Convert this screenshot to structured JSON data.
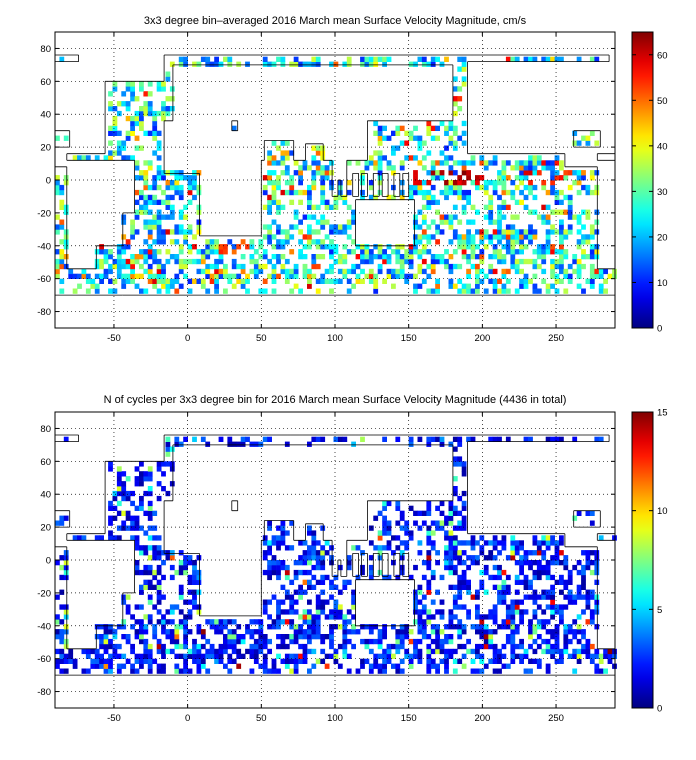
{
  "figure": {
    "background": "#ffffff"
  },
  "chart_data": [
    {
      "type": "heatmap",
      "title": "3x3 degree bin–averaged 2016 March mean Surface Velocity Magnitude, cm/s",
      "xlabel": "",
      "ylabel": "",
      "xlim": [
        -90,
        290
      ],
      "ylim": [
        -90,
        90
      ],
      "x_ticks": [
        -50,
        0,
        50,
        100,
        150,
        200,
        250
      ],
      "y_ticks": [
        80,
        60,
        40,
        20,
        0,
        -20,
        -40,
        -60,
        -80
      ],
      "grid": true,
      "grid_style": "dotted",
      "bin_size_deg": 3,
      "colormap": "jet",
      "colorbar": {
        "min": 0,
        "max": 65,
        "ticks": [
          0,
          10,
          20,
          30,
          40,
          50,
          60
        ]
      },
      "mean_bin_value_estimate": 22,
      "high_value_regions_estimate": [
        {
          "lon_range": [
            150,
            200
          ],
          "lat_range": [
            -3,
            3
          ],
          "value": 65
        },
        {
          "lon_range": [
            230,
            260
          ],
          "lat_range": [
            -3,
            3
          ],
          "value": 60
        },
        {
          "lon_range": [
            20,
            40
          ],
          "lat_range": [
            -45,
            -35
          ],
          "value": 55
        },
        {
          "lon_range": [
            140,
            160
          ],
          "lat_range": [
            30,
            40
          ],
          "value": 55
        }
      ]
    },
    {
      "type": "heatmap",
      "title": "N of cycles per 3x3 degree bin for 2016 March mean Surface Velocity Magnitude (4436 in total)",
      "xlabel": "",
      "ylabel": "",
      "xlim": [
        -90,
        290
      ],
      "ylim": [
        -90,
        90
      ],
      "x_ticks": [
        -50,
        0,
        50,
        100,
        150,
        200,
        250
      ],
      "y_ticks": [
        80,
        60,
        40,
        20,
        0,
        -20,
        -40,
        -60,
        -80
      ],
      "grid": true,
      "grid_style": "dotted",
      "bin_size_deg": 3,
      "colormap": "jet",
      "colorbar": {
        "min": 0,
        "max": 15,
        "ticks": [
          0,
          5,
          10,
          15
        ]
      },
      "total_cycles": 4436,
      "mean_bin_value_estimate": 2
    }
  ]
}
